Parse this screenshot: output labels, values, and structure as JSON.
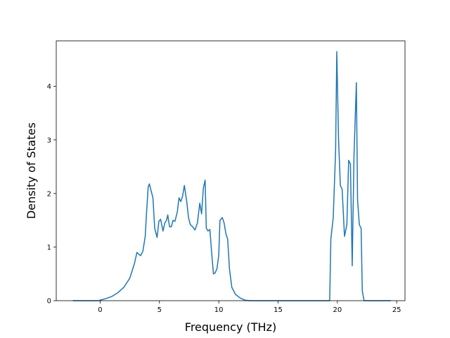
{
  "chart_data": {
    "type": "line",
    "title": "",
    "xlabel": "Frequency (THz)",
    "ylabel": "Density of States",
    "xlim": [
      -3.7,
      25.7
    ],
    "ylim": [
      0,
      4.85
    ],
    "xticks": [
      0,
      5,
      10,
      15,
      20,
      25
    ],
    "yticks": [
      0,
      1,
      2,
      3,
      4
    ],
    "grid": false,
    "legend": "none",
    "series": [
      {
        "color": "#1f77b4",
        "x": [
          -2.3,
          -0.1,
          0.0,
          0.5,
          1.0,
          1.5,
          2.0,
          2.5,
          2.9,
          3.1,
          3.4,
          3.6,
          3.8,
          3.9,
          4.05,
          4.15,
          4.3,
          4.45,
          4.6,
          4.8,
          4.95,
          5.1,
          5.3,
          5.45,
          5.6,
          5.7,
          5.85,
          6.0,
          6.15,
          6.3,
          6.5,
          6.65,
          6.8,
          6.95,
          7.1,
          7.3,
          7.45,
          7.6,
          7.8,
          8.0,
          8.2,
          8.4,
          8.55,
          8.7,
          8.85,
          8.95,
          9.1,
          9.25,
          9.4,
          9.55,
          9.7,
          9.85,
          10.0,
          10.1,
          10.3,
          10.45,
          10.6,
          10.75,
          10.9,
          11.1,
          11.4,
          11.8,
          12.2,
          12.6,
          15.0,
          19.35,
          19.45,
          19.65,
          19.85,
          19.95,
          20.1,
          20.25,
          20.4,
          20.6,
          20.8,
          20.95,
          21.1,
          21.25,
          21.4,
          21.6,
          21.7,
          21.85,
          22.0,
          22.1,
          22.25,
          22.45,
          24.5
        ],
        "y": [
          0.0,
          0.0,
          0.01,
          0.04,
          0.08,
          0.15,
          0.25,
          0.42,
          0.7,
          0.9,
          0.84,
          0.92,
          1.2,
          1.6,
          2.12,
          2.18,
          2.05,
          1.92,
          1.35,
          1.18,
          1.48,
          1.52,
          1.3,
          1.45,
          1.5,
          1.6,
          1.38,
          1.38,
          1.5,
          1.48,
          1.65,
          1.92,
          1.85,
          1.95,
          2.15,
          1.85,
          1.55,
          1.42,
          1.38,
          1.32,
          1.45,
          1.82,
          1.62,
          2.1,
          2.25,
          1.35,
          1.3,
          1.33,
          0.9,
          0.5,
          0.52,
          0.6,
          0.85,
          1.5,
          1.55,
          1.45,
          1.25,
          1.15,
          0.6,
          0.25,
          0.12,
          0.05,
          0.01,
          0.0,
          0.0,
          0.0,
          1.15,
          1.55,
          2.8,
          4.65,
          3.0,
          2.15,
          2.08,
          1.2,
          1.42,
          2.62,
          2.55,
          0.65,
          2.7,
          4.07,
          1.88,
          1.42,
          1.35,
          0.18,
          0.0,
          0.0,
          0.0
        ]
      }
    ]
  }
}
